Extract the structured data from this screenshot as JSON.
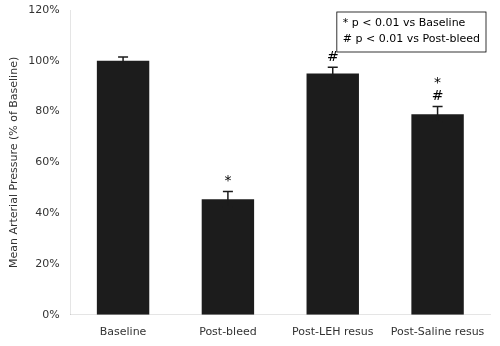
{
  "chart_data": {
    "type": "bar",
    "categories": [
      "Baseline",
      "Post-bleed",
      "Post-LEH resus",
      "Post-Saline resus"
    ],
    "values": [
      100.0,
      45.5,
      95.0,
      79.0
    ],
    "errors": [
      1.5,
      3.0,
      2.5,
      3.0
    ],
    "color": "#1c1c1c",
    "ylabel": "Mean Arterial Pressure (% of Baseline)",
    "ylim": [
      0,
      120
    ],
    "yticks": [
      {
        "value": 0,
        "label": "0%"
      },
      {
        "value": 20,
        "label": "20%"
      },
      {
        "value": 40,
        "label": "40%"
      },
      {
        "value": 60,
        "label": "60%"
      },
      {
        "value": 80,
        "label": "80%"
      },
      {
        "value": 100,
        "label": "100%"
      },
      {
        "value": 120,
        "label": "120%"
      }
    ],
    "grid": false,
    "annotations": [
      {
        "category": "Post-bleed",
        "labels": [
          "*"
        ]
      },
      {
        "category": "Post-LEH resus",
        "labels": [
          "#"
        ]
      },
      {
        "category": "Post-Saline resus",
        "labels": [
          "*",
          "#"
        ]
      },
      {
        "text": "* p < 0.01 vs Baseline"
      },
      {
        "text": "# p < 0.01 vs Post-bleed"
      }
    ]
  }
}
